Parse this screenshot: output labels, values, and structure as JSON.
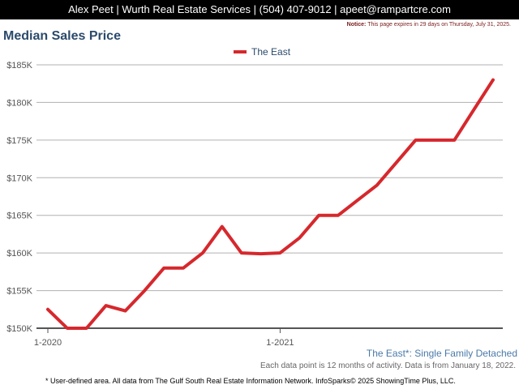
{
  "header": {
    "contact": "Alex Peet | Wurth Real Estate Services | (504) 407-9012 | apeet@rampartcre.com"
  },
  "notice": {
    "label": "Notice:",
    "text": "This page expires in 29 days on Thursday, July 31, 2025."
  },
  "series_label": "The East*: Single Family Detached",
  "data_note": "Each data point is 12 months of activity. Data is from January 18, 2022.",
  "footer": "* User-defined area. All data from The Gulf South Real Estate Information Network. InfoSparks© 2025 ShowingTime Plus, LLC.",
  "colors": {
    "line": "#d6282d",
    "title": "#2b4a6b",
    "grid": "#b0b0b0"
  },
  "chart_data": {
    "type": "line",
    "title": "Median Sales Price",
    "xlabel": "",
    "ylabel": "",
    "ylim": [
      150000,
      185000
    ],
    "yticks": [
      150000,
      155000,
      160000,
      165000,
      170000,
      175000,
      180000,
      185000
    ],
    "ytick_labels": [
      "$150K",
      "$155K",
      "$160K",
      "$165K",
      "$170K",
      "$175K",
      "$180K",
      "$185K"
    ],
    "xtick_labels": [
      {
        "label": "1-2020",
        "index": 0
      },
      {
        "label": "1-2021",
        "index": 12
      }
    ],
    "grid": true,
    "legend": "top-center",
    "x": [
      "1-2020",
      "2-2020",
      "3-2020",
      "4-2020",
      "5-2020",
      "6-2020",
      "7-2020",
      "8-2020",
      "9-2020",
      "10-2020",
      "11-2020",
      "12-2020",
      "1-2021",
      "2-2021",
      "3-2021",
      "4-2021",
      "5-2021",
      "6-2021",
      "7-2021",
      "8-2021",
      "9-2021",
      "10-2021",
      "11-2021",
      "12-2021"
    ],
    "series": [
      {
        "name": "The East",
        "values": [
          152500,
          150000,
          150000,
          153000,
          152300,
          155000,
          158000,
          158000,
          160000,
          163500,
          160000,
          159900,
          160000,
          162000,
          165000,
          165000,
          167000,
          169000,
          172000,
          175000,
          175000,
          175000,
          179000,
          183000
        ]
      }
    ]
  }
}
